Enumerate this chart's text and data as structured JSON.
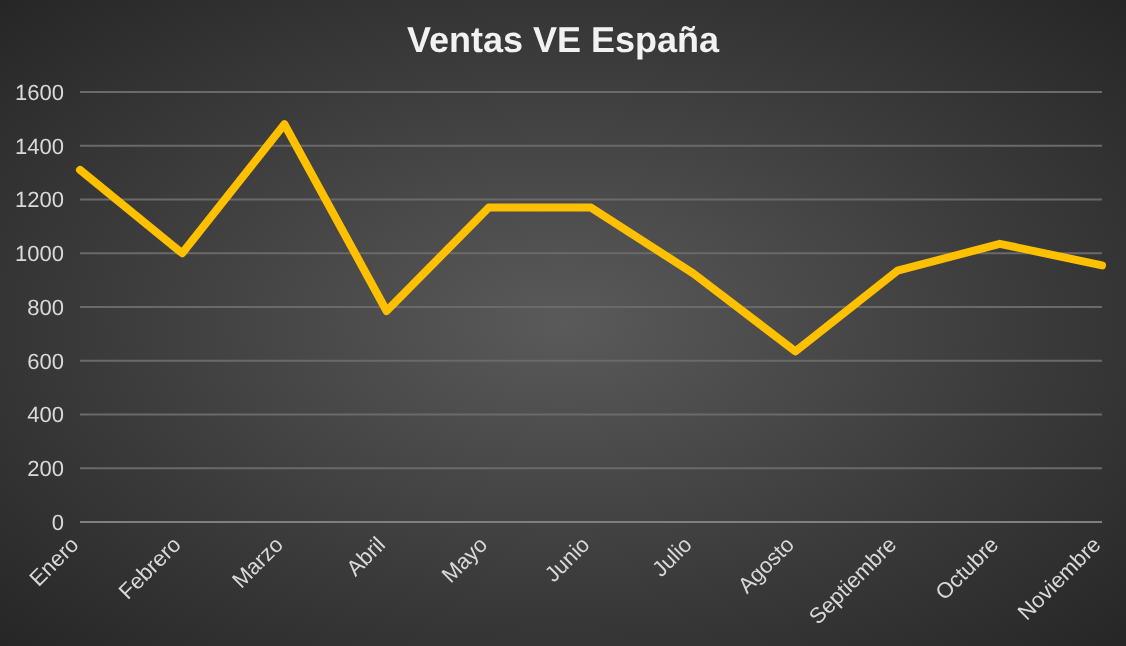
{
  "chart_data": {
    "type": "line",
    "title": "Ventas  VE España",
    "categories": [
      "Enero",
      "Febrero",
      "Marzo",
      "Abril",
      "Mayo",
      "Junio",
      "Julio",
      "Agosto",
      "Septiembre",
      "Octubre",
      "Noviembre"
    ],
    "series": [
      {
        "color": "#ffc000",
        "values": [
          1310,
          1000,
          1480,
          785,
          1170,
          1170,
          925,
          635,
          935,
          1035,
          955
        ]
      }
    ],
    "ylim": [
      0,
      1600
    ],
    "yticks": [
      0,
      200,
      400,
      600,
      800,
      1000,
      1200,
      1400,
      1600
    ],
    "grid": "y",
    "legend": false,
    "marker": "none",
    "line_style": "solid"
  }
}
